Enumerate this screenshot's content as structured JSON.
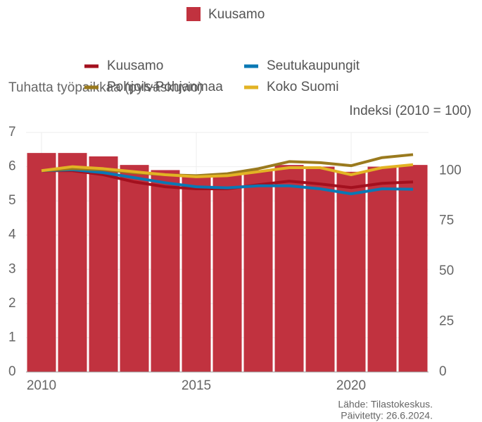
{
  "chart_data": {
    "type": "combo",
    "ylabel": "Tuhatta työpaikkaa (pylväskuvio)",
    "y2label": "Indeksi (2010 = 100)",
    "source": "Lähde: Tilastokeskus.",
    "updated": "Päivitetty: 26.6.2024.",
    "x": [
      2010,
      2011,
      2012,
      2013,
      2014,
      2015,
      2016,
      2017,
      2018,
      2019,
      2020,
      2021,
      2022
    ],
    "xlim": [
      2009.5,
      2022.5
    ],
    "xticks": [
      2010,
      2015,
      2020
    ],
    "ylim": [
      0,
      7
    ],
    "yticks": [
      0,
      1,
      2,
      3,
      4,
      5,
      6,
      7
    ],
    "y2lim": [
      0,
      119
    ],
    "y2ticks": [
      0,
      25,
      50,
      75,
      100
    ],
    "grid": true,
    "bars": {
      "name": "Kuusamo",
      "color": "#c1323f",
      "values": [
        6.4,
        6.4,
        6.3,
        6.05,
        5.9,
        5.75,
        5.75,
        5.9,
        6.05,
        6.0,
        5.85,
        6.0,
        6.05
      ]
    },
    "series": [
      {
        "name": "Kuusamo",
        "color": "#a3101e",
        "axis": "y2",
        "values": [
          100,
          100,
          98,
          94.4,
          92,
          91,
          91,
          93,
          94.8,
          93.4,
          91.6,
          93.7,
          94.4
        ]
      },
      {
        "name": "Seutukaupungit",
        "color": "#0a78b4",
        "axis": "y2",
        "values": [
          100,
          100.5,
          99,
          96.5,
          94,
          92,
          91.5,
          92.5,
          92.5,
          91,
          88.5,
          91,
          90.8
        ]
      },
      {
        "name": "Pohjois-Pohjanmaa",
        "color": "#9a7a1e",
        "axis": "y2",
        "values": [
          100,
          101,
          100.5,
          99,
          98,
          97.5,
          98.5,
          101,
          104.5,
          104,
          102.5,
          106.5,
          108
        ]
      },
      {
        "name": "Koko Suomi",
        "color": "#e2b324",
        "axis": "y2",
        "values": [
          100,
          102,
          101,
          99.5,
          98,
          97,
          97.5,
          99.5,
          101.5,
          101.5,
          98,
          101.5,
          103
        ]
      }
    ]
  }
}
